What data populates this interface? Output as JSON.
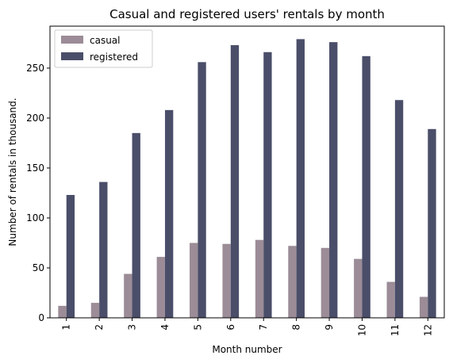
{
  "chart_data": {
    "type": "bar",
    "title": "Casual and registered users' rentals by month",
    "xlabel": "Month number",
    "ylabel": "Number of rentals in thousand.",
    "categories": [
      "1",
      "2",
      "3",
      "4",
      "5",
      "6",
      "7",
      "8",
      "9",
      "10",
      "11",
      "12"
    ],
    "series": [
      {
        "name": "casual",
        "color": "#9b8c97",
        "values": [
          12,
          15,
          44,
          61,
          75,
          74,
          78,
          72,
          70,
          59,
          36,
          21
        ]
      },
      {
        "name": "registered",
        "color": "#4a4e69",
        "values": [
          123,
          136,
          185,
          208,
          256,
          273,
          266,
          279,
          276,
          262,
          218,
          189
        ]
      }
    ],
    "ylim": [
      0,
      292
    ],
    "yticks": [
      0,
      50,
      100,
      150,
      200,
      250
    ],
    "legend": {
      "position": "top-left",
      "labels": [
        "casual",
        "registered"
      ]
    },
    "grid": false
  }
}
